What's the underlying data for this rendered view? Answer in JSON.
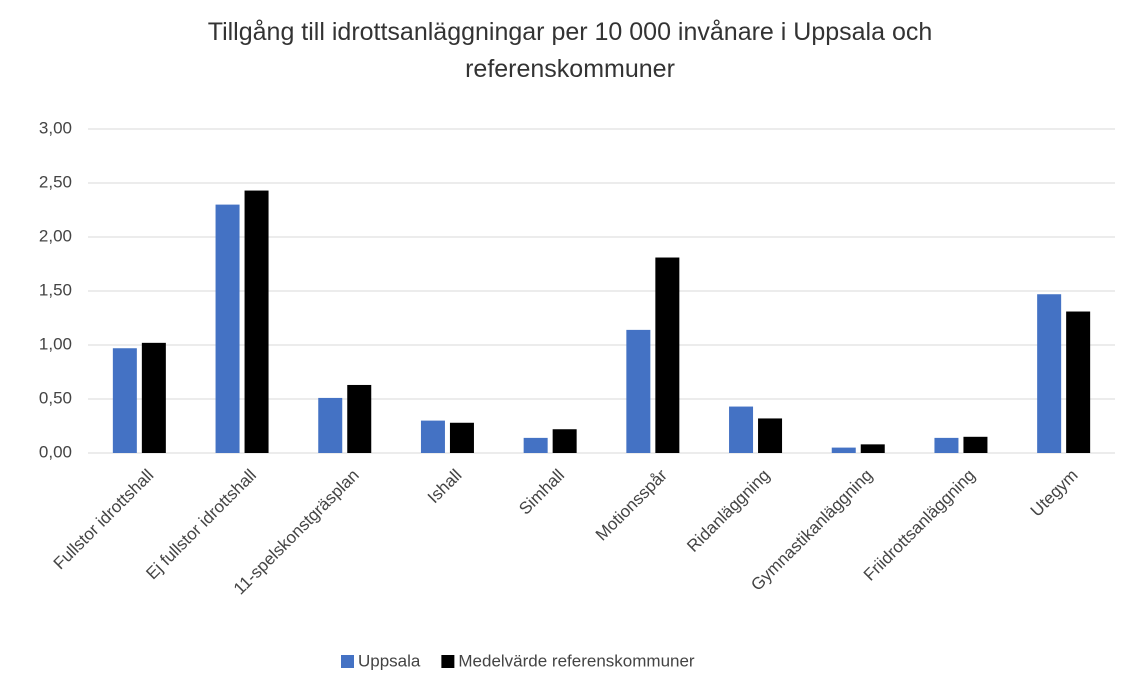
{
  "chart_data": {
    "type": "bar",
    "title": "Tillgång till idrottsanläggningar per 10 000 invånare i Uppsala och referenskommuner",
    "categories": [
      "Fullstor idrottshall",
      "Ej fullstor idrottshall",
      "11-spelskonstgräsplan",
      "Ishall",
      "Simhall",
      "Motionsspår",
      "Ridanläggning",
      "Gymnastikanläggning",
      "Friidrottsanläggning",
      "Utegym"
    ],
    "series": [
      {
        "name": "Uppsala",
        "color": "#4472c4",
        "values": [
          0.97,
          2.3,
          0.51,
          0.3,
          0.14,
          1.14,
          0.43,
          0.05,
          0.14,
          1.47
        ]
      },
      {
        "name": "Medelvärde referenskommuner",
        "color": "#000000",
        "values": [
          1.02,
          2.43,
          0.63,
          0.28,
          0.22,
          1.81,
          0.32,
          0.08,
          0.15,
          1.31
        ]
      }
    ],
    "ylim": [
      0,
      3
    ],
    "yticks": [
      {
        "value": 0,
        "label": "0,00"
      },
      {
        "value": 0.5,
        "label": "0,50"
      },
      {
        "value": 1,
        "label": "1,00"
      },
      {
        "value": 1.5,
        "label": "1,50"
      },
      {
        "value": 2,
        "label": "2,00"
      },
      {
        "value": 2.5,
        "label": "2,50"
      },
      {
        "value": 3,
        "label": "3,00"
      }
    ],
    "grid": true,
    "legend": "bottom"
  }
}
